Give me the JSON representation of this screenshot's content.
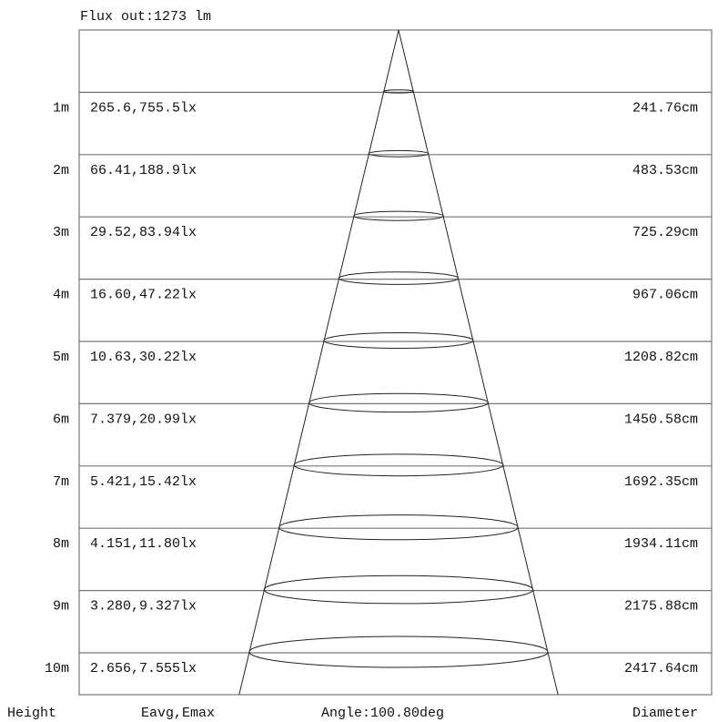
{
  "header": {
    "flux": "Flux out:1273 lm"
  },
  "footer": {
    "height_label": "Height",
    "illuminance_label": "Eavg,Emax",
    "angle_label": "Angle:100.80deg",
    "diameter_label": "Diameter"
  },
  "beam_angle_deg": 100.8,
  "rows": [
    {
      "height": "1m",
      "illuminance": "265.6,755.5lx",
      "diameter": "241.76cm"
    },
    {
      "height": "2m",
      "illuminance": "66.41,188.9lx",
      "diameter": "483.53cm"
    },
    {
      "height": "3m",
      "illuminance": "29.52,83.94lx",
      "diameter": "725.29cm"
    },
    {
      "height": "4m",
      "illuminance": "16.60,47.22lx",
      "diameter": "967.06cm"
    },
    {
      "height": "5m",
      "illuminance": "10.63,30.22lx",
      "diameter": "1208.82cm"
    },
    {
      "height": "6m",
      "illuminance": "7.379,20.99lx",
      "diameter": "1450.58cm"
    },
    {
      "height": "7m",
      "illuminance": "5.421,15.42lx",
      "diameter": "1692.35cm"
    },
    {
      "height": "8m",
      "illuminance": "4.151,11.80lx",
      "diameter": "1934.11cm"
    },
    {
      "height": "9m",
      "illuminance": "3.280,9.327lx",
      "diameter": "2175.88cm"
    },
    {
      "height": "10m",
      "illuminance": "2.656,7.555lx",
      "diameter": "2417.64cm"
    }
  ]
}
